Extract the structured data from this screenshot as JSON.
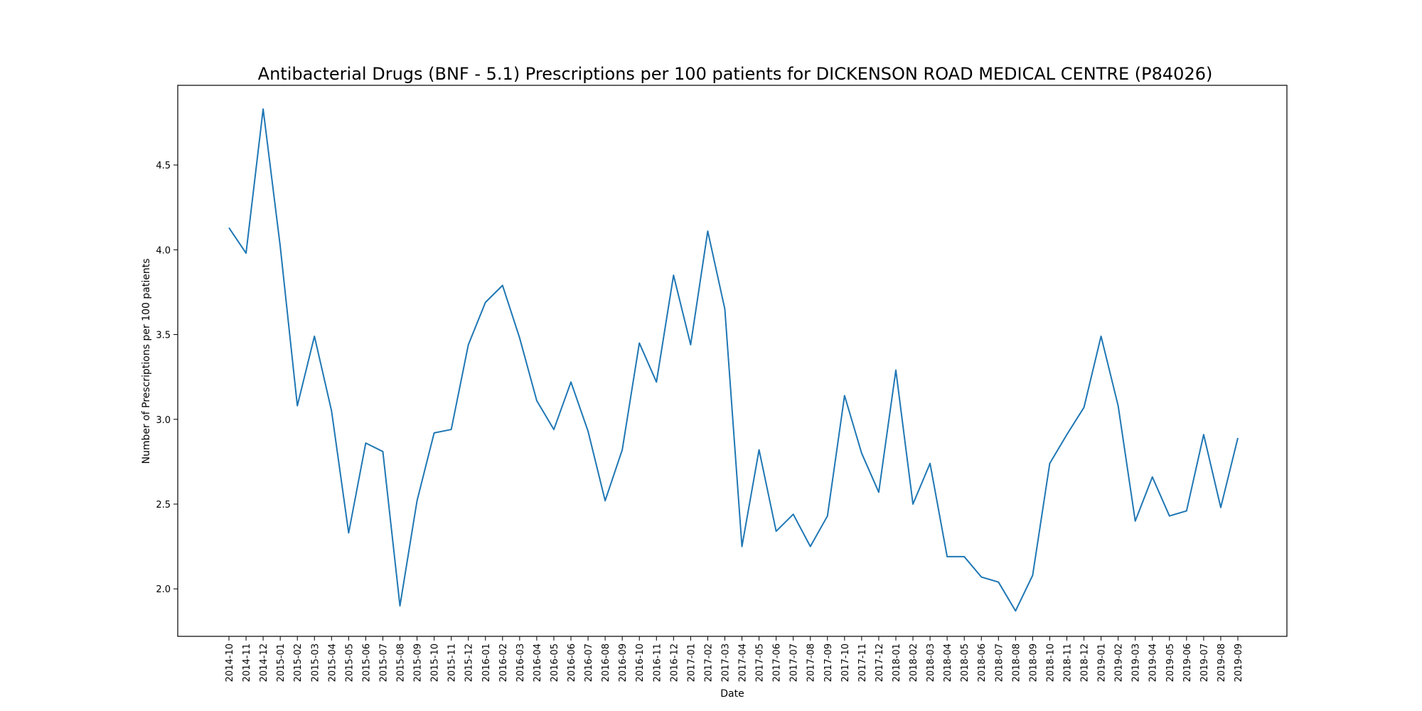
{
  "chart_data": {
    "type": "line",
    "title": "Antibacterial Drugs (BNF - 5.1) Prescriptions per 100 patients for DICKENSON ROAD MEDICAL CENTRE (P84026)",
    "xlabel": "Date",
    "ylabel": "Number of Prescriptions per 100 patients",
    "ylim": [
      1.72,
      4.97
    ],
    "yticks": [
      2.0,
      2.5,
      3.0,
      3.5,
      4.0,
      4.5
    ],
    "ytick_labels": [
      "2.0",
      "2.5",
      "3.0",
      "3.5",
      "4.0",
      "4.5"
    ],
    "grid": false,
    "line_color": "#1f77b4",
    "x": [
      "2014-10",
      "2014-11",
      "2014-12",
      "2015-01",
      "2015-02",
      "2015-03",
      "2015-04",
      "2015-05",
      "2015-06",
      "2015-07",
      "2015-08",
      "2015-09",
      "2015-10",
      "2015-11",
      "2015-12",
      "2016-01",
      "2016-02",
      "2016-03",
      "2016-04",
      "2016-05",
      "2016-06",
      "2016-07",
      "2016-08",
      "2016-09",
      "2016-10",
      "2016-11",
      "2016-12",
      "2017-01",
      "2017-02",
      "2017-03",
      "2017-04",
      "2017-05",
      "2017-06",
      "2017-07",
      "2017-08",
      "2017-09",
      "2017-10",
      "2017-11",
      "2017-12",
      "2018-01",
      "2018-02",
      "2018-03",
      "2018-04",
      "2018-05",
      "2018-06",
      "2018-07",
      "2018-08",
      "2018-09",
      "2018-10",
      "2018-11",
      "2018-12",
      "2019-01",
      "2019-02",
      "2019-03",
      "2019-04",
      "2019-05",
      "2019-06",
      "2019-07",
      "2019-08",
      "2019-09"
    ],
    "series": [
      {
        "values": [
          4.13,
          3.98,
          4.83,
          4.02,
          3.08,
          3.49,
          3.05,
          2.33,
          2.86,
          2.81,
          1.9,
          2.52,
          2.92,
          2.94,
          3.44,
          3.69,
          3.79,
          3.48,
          3.11,
          2.94,
          3.22,
          2.93,
          2.52,
          2.82,
          3.45,
          3.22,
          3.85,
          3.44,
          4.11,
          3.65,
          2.25,
          2.82,
          2.34,
          2.44,
          2.25,
          2.43,
          3.14,
          2.8,
          2.57,
          3.29,
          2.5,
          2.74,
          2.19,
          2.19,
          2.07,
          2.04,
          1.87,
          2.08,
          2.74,
          2.91,
          3.07,
          3.49,
          3.08,
          2.4,
          2.66,
          2.43,
          2.46,
          2.91,
          2.48,
          2.89
        ]
      }
    ]
  }
}
